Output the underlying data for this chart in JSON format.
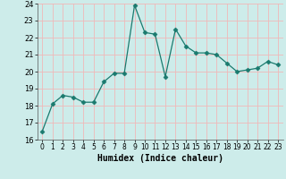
{
  "x": [
    0,
    1,
    2,
    3,
    4,
    5,
    6,
    7,
    8,
    9,
    10,
    11,
    12,
    13,
    14,
    15,
    16,
    17,
    18,
    19,
    20,
    21,
    22,
    23
  ],
  "y": [
    16.5,
    18.1,
    18.6,
    18.5,
    18.2,
    18.2,
    19.4,
    19.9,
    19.9,
    23.9,
    22.3,
    22.2,
    19.7,
    22.5,
    21.5,
    21.1,
    21.1,
    21.0,
    20.5,
    20.0,
    20.1,
    20.2,
    20.6,
    20.4
  ],
  "xlabel": "Humidex (Indice chaleur)",
  "ylim": [
    16,
    24
  ],
  "xlim": [
    -0.5,
    23.5
  ],
  "yticks": [
    16,
    17,
    18,
    19,
    20,
    21,
    22,
    23,
    24
  ],
  "xticks": [
    0,
    1,
    2,
    3,
    4,
    5,
    6,
    7,
    8,
    9,
    10,
    11,
    12,
    13,
    14,
    15,
    16,
    17,
    18,
    19,
    20,
    21,
    22,
    23
  ],
  "line_color": "#1a7a6e",
  "marker": "D",
  "marker_size": 2.5,
  "bg_color": "#cdecea",
  "grid_color": "#f0b8b8",
  "axes_bg": "#cdecea",
  "xlabel_fontsize": 7,
  "tick_fontsize": 6
}
